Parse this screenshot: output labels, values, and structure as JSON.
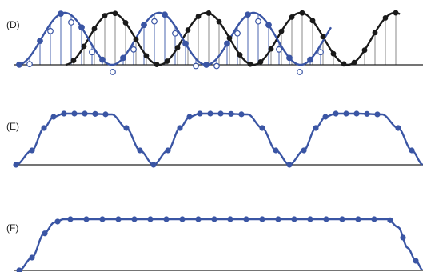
{
  "colors": {
    "blue": "#3a55a4",
    "black": "#1a1a1a",
    "baseline": "#222222",
    "blue_stem": "#7d90c6",
    "black_stem": "#8a8a8a"
  },
  "panels": [
    {
      "label": "(D)"
    },
    {
      "label": "(E)"
    },
    {
      "label": "(F)"
    }
  ]
}
